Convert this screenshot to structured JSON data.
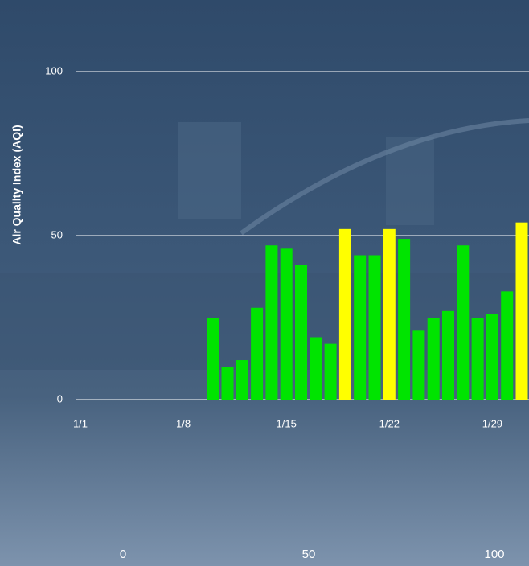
{
  "chart_data": {
    "type": "bar",
    "y_label": "Air Quality Index (AQI)",
    "categories": [
      "1/1",
      null,
      null,
      null,
      null,
      null,
      null,
      "1/8",
      null,
      null,
      null,
      null,
      null,
      null,
      "1/15",
      null,
      null,
      null,
      null,
      null,
      null,
      "1/22",
      null,
      null,
      null,
      null,
      null,
      null,
      "1/29",
      null,
      null
    ],
    "values": [
      null,
      null,
      null,
      null,
      null,
      null,
      null,
      null,
      null,
      25,
      10,
      12,
      28,
      47,
      46,
      41,
      19,
      17,
      52,
      44,
      44,
      52,
      49,
      21,
      25,
      27,
      47,
      25,
      26,
      33,
      54
    ],
    "colors": [
      null,
      null,
      null,
      null,
      null,
      null,
      null,
      null,
      null,
      "#00e400",
      "#00e400",
      "#00e400",
      "#00e400",
      "#00e400",
      "#00e400",
      "#00e400",
      "#00e400",
      "#00e400",
      "#ffff00",
      "#00e400",
      "#00e400",
      "#ffff00",
      "#00e400",
      "#00e400",
      "#00e400",
      "#00e400",
      "#00e400",
      "#00e400",
      "#00e400",
      "#00e400",
      "#ffff00"
    ],
    "ylim": [
      0,
      100
    ],
    "yticks": [
      0,
      50,
      100
    ],
    "grid": true,
    "x2lim": [
      0,
      100
    ],
    "x2ticks": [
      0,
      50,
      100
    ]
  }
}
